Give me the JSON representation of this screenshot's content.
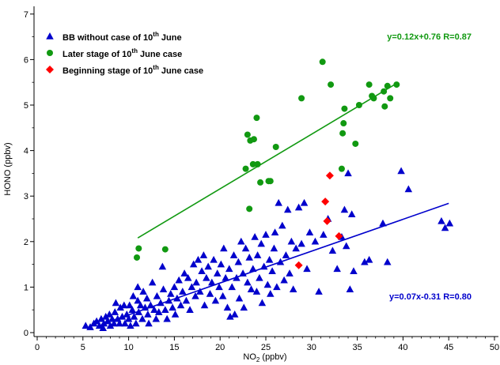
{
  "chart_data": {
    "type": "scatter",
    "xlabel_main": "NO",
    "xlabel_sub": "2",
    "xlabel_unit": " (ppbv)",
    "ylabel": "HONO (ppbv)",
    "xlim": [
      0,
      50
    ],
    "ylim": [
      0,
      7
    ],
    "x_ticks": [
      0,
      5,
      10,
      15,
      20,
      25,
      30,
      35,
      40,
      45,
      50
    ],
    "y_ticks": [
      0,
      1,
      2,
      3,
      4,
      5,
      6,
      7
    ],
    "legend_position": "top-left",
    "series": [
      {
        "name": "BB without case of 10th June",
        "legend": {
          "pre": "BB without case of 10",
          "sup": "th",
          "post": " June"
        },
        "marker": "triangle",
        "color": "#0000cc",
        "points": [
          [
            5.3,
            0.15
          ],
          [
            5.8,
            0.12
          ],
          [
            6.2,
            0.2
          ],
          [
            6.5,
            0.25
          ],
          [
            6.8,
            0.15
          ],
          [
            7.0,
            0.3
          ],
          [
            7.2,
            0.1
          ],
          [
            7.3,
            0.2
          ],
          [
            7.5,
            0.35
          ],
          [
            7.7,
            0.25
          ],
          [
            7.9,
            0.4
          ],
          [
            8.0,
            0.15
          ],
          [
            8.2,
            0.3
          ],
          [
            8.4,
            0.2
          ],
          [
            8.5,
            0.45
          ],
          [
            8.6,
            0.65
          ],
          [
            8.8,
            0.3
          ],
          [
            9.0,
            0.2
          ],
          [
            9.1,
            0.55
          ],
          [
            9.3,
            0.35
          ],
          [
            9.5,
            0.6
          ],
          [
            9.6,
            0.2
          ],
          [
            9.8,
            0.4
          ],
          [
            10.0,
            0.3
          ],
          [
            10.1,
            0.6
          ],
          [
            10.2,
            0.15
          ],
          [
            10.4,
            0.5
          ],
          [
            10.5,
            0.8
          ],
          [
            10.6,
            0.35
          ],
          [
            10.8,
            0.2
          ],
          [
            11.0,
            0.7
          ],
          [
            11.0,
            1.0
          ],
          [
            11.1,
            0.45
          ],
          [
            11.3,
            0.6
          ],
          [
            11.5,
            0.3
          ],
          [
            11.6,
            0.9
          ],
          [
            11.8,
            0.55
          ],
          [
            12.0,
            0.75
          ],
          [
            12.1,
            0.4
          ],
          [
            12.2,
            0.2
          ],
          [
            12.4,
            0.6
          ],
          [
            12.6,
            1.1
          ],
          [
            12.8,
            0.5
          ],
          [
            13.0,
            0.3
          ],
          [
            13.1,
            0.8
          ],
          [
            13.3,
            0.45
          ],
          [
            13.5,
            0.65
          ],
          [
            13.7,
            1.45
          ],
          [
            13.8,
            0.95
          ],
          [
            14.0,
            0.5
          ],
          [
            14.2,
            0.3
          ],
          [
            14.4,
            0.7
          ],
          [
            14.6,
            0.85
          ],
          [
            14.8,
            0.55
          ],
          [
            15.0,
            1.0
          ],
          [
            15.1,
            0.4
          ],
          [
            15.3,
            0.75
          ],
          [
            15.5,
            1.15
          ],
          [
            15.7,
            0.6
          ],
          [
            15.9,
            0.9
          ],
          [
            16.1,
            1.3
          ],
          [
            16.3,
            0.7
          ],
          [
            16.5,
            1.2
          ],
          [
            16.7,
            0.5
          ],
          [
            16.9,
            1.0
          ],
          [
            17.1,
            1.5
          ],
          [
            17.3,
            0.8
          ],
          [
            17.4,
            1.1
          ],
          [
            17.6,
            1.6
          ],
          [
            17.8,
            0.9
          ],
          [
            18.0,
            1.35
          ],
          [
            18.2,
            1.7
          ],
          [
            18.3,
            0.6
          ],
          [
            18.5,
            1.2
          ],
          [
            18.7,
            1.45
          ],
          [
            18.9,
            0.85
          ],
          [
            19.1,
            1.1
          ],
          [
            19.3,
            1.6
          ],
          [
            19.5,
            0.7
          ],
          [
            19.7,
            1.3
          ],
          [
            19.9,
            1.0
          ],
          [
            20.1,
            1.5
          ],
          [
            20.3,
            0.8
          ],
          [
            20.4,
            1.85
          ],
          [
            20.6,
            1.2
          ],
          [
            20.8,
            0.55
          ],
          [
            21.0,
            1.4
          ],
          [
            21.1,
            0.35
          ],
          [
            21.3,
            1.0
          ],
          [
            21.5,
            1.7
          ],
          [
            21.6,
            0.4
          ],
          [
            21.8,
            1.2
          ],
          [
            22.0,
            1.55
          ],
          [
            22.1,
            0.75
          ],
          [
            22.3,
            2.0
          ],
          [
            22.5,
            1.3
          ],
          [
            22.6,
            0.55
          ],
          [
            22.8,
            1.85
          ],
          [
            23.0,
            1.1
          ],
          [
            23.2,
            1.65
          ],
          [
            23.4,
            0.95
          ],
          [
            23.6,
            1.4
          ],
          [
            23.8,
            2.1
          ],
          [
            24.0,
            0.9
          ],
          [
            24.1,
            1.7
          ],
          [
            24.3,
            1.2
          ],
          [
            24.5,
            1.95
          ],
          [
            24.6,
            0.65
          ],
          [
            24.8,
            1.45
          ],
          [
            25.0,
            2.15
          ],
          [
            25.2,
            1.05
          ],
          [
            25.4,
            1.6
          ],
          [
            25.5,
            0.85
          ],
          [
            25.7,
            1.35
          ],
          [
            25.9,
            1.85
          ],
          [
            26.0,
            2.2
          ],
          [
            26.2,
            1.0
          ],
          [
            26.4,
            2.85
          ],
          [
            26.6,
            1.55
          ],
          [
            26.8,
            2.35
          ],
          [
            27.0,
            1.15
          ],
          [
            27.2,
            1.7
          ],
          [
            27.4,
            2.7
          ],
          [
            27.6,
            1.3
          ],
          [
            27.8,
            2.0
          ],
          [
            28.0,
            0.95
          ],
          [
            28.3,
            1.85
          ],
          [
            28.6,
            2.75
          ],
          [
            28.9,
            1.95
          ],
          [
            29.2,
            2.85
          ],
          [
            29.5,
            1.4
          ],
          [
            29.8,
            2.2
          ],
          [
            30.4,
            2.0
          ],
          [
            30.8,
            0.9
          ],
          [
            31.3,
            2.15
          ],
          [
            31.8,
            2.5
          ],
          [
            32.3,
            1.8
          ],
          [
            32.8,
            1.4
          ],
          [
            33.3,
            2.1
          ],
          [
            33.6,
            2.7
          ],
          [
            33.8,
            1.9
          ],
          [
            34.0,
            3.5
          ],
          [
            34.2,
            0.95
          ],
          [
            34.4,
            2.6
          ],
          [
            34.6,
            1.35
          ],
          [
            35.8,
            1.55
          ],
          [
            36.3,
            1.6
          ],
          [
            37.8,
            2.4
          ],
          [
            38.3,
            1.55
          ],
          [
            39.8,
            3.55
          ],
          [
            40.6,
            3.15
          ],
          [
            44.2,
            2.45
          ],
          [
            44.6,
            2.3
          ],
          [
            45.1,
            2.4
          ]
        ]
      },
      {
        "name": "Later stage of 10th June case",
        "legend": {
          "pre": "Later stage of 10",
          "sup": "th",
          "post": " June case"
        },
        "marker": "circle",
        "color": "#119911",
        "points": [
          [
            10.9,
            1.65
          ],
          [
            11.1,
            1.85
          ],
          [
            14.0,
            1.83
          ],
          [
            22.8,
            3.6
          ],
          [
            23.0,
            4.35
          ],
          [
            23.2,
            2.72
          ],
          [
            23.3,
            4.22
          ],
          [
            23.6,
            3.7
          ],
          [
            23.7,
            4.25
          ],
          [
            24.0,
            4.72
          ],
          [
            24.1,
            3.7
          ],
          [
            24.4,
            3.3
          ],
          [
            25.3,
            3.33
          ],
          [
            25.5,
            3.33
          ],
          [
            26.1,
            4.08
          ],
          [
            28.9,
            5.15
          ],
          [
            31.2,
            5.95
          ],
          [
            32.1,
            5.45
          ],
          [
            33.3,
            3.6
          ],
          [
            33.4,
            4.38
          ],
          [
            33.5,
            4.6
          ],
          [
            33.6,
            4.92
          ],
          [
            34.8,
            4.15
          ],
          [
            35.2,
            5.0
          ],
          [
            36.3,
            5.45
          ],
          [
            36.6,
            5.2
          ],
          [
            36.8,
            5.15
          ],
          [
            37.9,
            5.3
          ],
          [
            38.0,
            4.97
          ],
          [
            38.3,
            5.42
          ],
          [
            38.6,
            5.15
          ],
          [
            39.3,
            5.45
          ]
        ]
      },
      {
        "name": "Beginning stage of 10th June case",
        "legend": {
          "pre": "Beginning stage of 10",
          "sup": "th",
          "post": " June case"
        },
        "marker": "diamond",
        "color": "#ff0000",
        "points": [
          [
            28.6,
            1.48
          ],
          [
            31.5,
            2.88
          ],
          [
            31.7,
            2.45
          ],
          [
            32.0,
            3.45
          ],
          [
            33.0,
            2.12
          ]
        ]
      }
    ],
    "fits": [
      {
        "slope": 0.12,
        "intercept": 0.76,
        "x_range": [
          11.0,
          39.3
        ],
        "color": "#119911",
        "label": "y=0.12x+0.76 R=0.87"
      },
      {
        "slope": 0.07,
        "intercept": -0.31,
        "x_range": [
          7.0,
          45.0
        ],
        "color": "#0000cc",
        "label": "y=0.07x-0.31 R=0.80"
      }
    ]
  }
}
